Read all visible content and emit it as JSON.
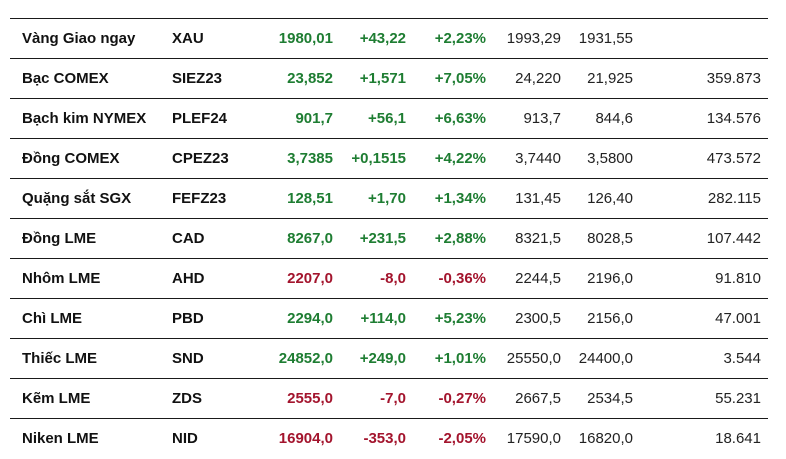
{
  "table": {
    "rows": [
      {
        "name": "Vàng Giao ngay",
        "code": "XAU",
        "price": "1980,01",
        "change": "+43,22",
        "percent": "+2,23%",
        "high": "1993,29",
        "low": "1931,55",
        "volume": "",
        "trend": "up"
      },
      {
        "name": "Bạc COMEX",
        "code": "SIEZ23",
        "price": "23,852",
        "change": "+1,571",
        "percent": "+7,05%",
        "high": "24,220",
        "low": "21,925",
        "volume": "359.873",
        "trend": "up"
      },
      {
        "name": "Bạch kim NYMEX",
        "code": "PLEF24",
        "price": "901,7",
        "change": "+56,1",
        "percent": "+6,63%",
        "high": "913,7",
        "low": "844,6",
        "volume": "134.576",
        "trend": "up"
      },
      {
        "name": "Đồng COMEX",
        "code": "CPEZ23",
        "price": "3,7385",
        "change": "+0,1515",
        "percent": "+4,22%",
        "high": "3,7440",
        "low": "3,5800",
        "volume": "473.572",
        "trend": "up"
      },
      {
        "name": "Quặng sắt SGX",
        "code": "FEFZ23",
        "price": "128,51",
        "change": "+1,70",
        "percent": "+1,34%",
        "high": "131,45",
        "low": "126,40",
        "volume": "282.115",
        "trend": "up"
      },
      {
        "name": "Đồng LME",
        "code": "CAD",
        "price": "8267,0",
        "change": "+231,5",
        "percent": "+2,88%",
        "high": "8321,5",
        "low": "8028,5",
        "volume": "107.442",
        "trend": "up"
      },
      {
        "name": "Nhôm LME",
        "code": "AHD",
        "price": "2207,0",
        "change": "-8,0",
        "percent": "-0,36%",
        "high": "2244,5",
        "low": "2196,0",
        "volume": "91.810",
        "trend": "down"
      },
      {
        "name": "Chì LME",
        "code": "PBD",
        "price": "2294,0",
        "change": "+114,0",
        "percent": "+5,23%",
        "high": "2300,5",
        "low": "2156,0",
        "volume": "47.001",
        "trend": "up"
      },
      {
        "name": "Thiếc LME",
        "code": "SND",
        "price": "24852,0",
        "change": "+249,0",
        "percent": "+1,01%",
        "high": "25550,0",
        "low": "24400,0",
        "volume": "3.544",
        "trend": "up"
      },
      {
        "name": "Kẽm LME",
        "code": "ZDS",
        "price": "2555,0",
        "change": "-7,0",
        "percent": "-0,27%",
        "high": "2667,5",
        "low": "2534,5",
        "volume": "55.231",
        "trend": "down"
      },
      {
        "name": "Niken LME",
        "code": "NID",
        "price": "16904,0",
        "change": "-353,0",
        "percent": "-2,05%",
        "high": "17590,0",
        "low": "16820,0",
        "volume": "18.641",
        "trend": "down"
      }
    ],
    "colors": {
      "up": "#1e7d32",
      "down": "#a3142d",
      "border": "#1a1a1a"
    }
  }
}
